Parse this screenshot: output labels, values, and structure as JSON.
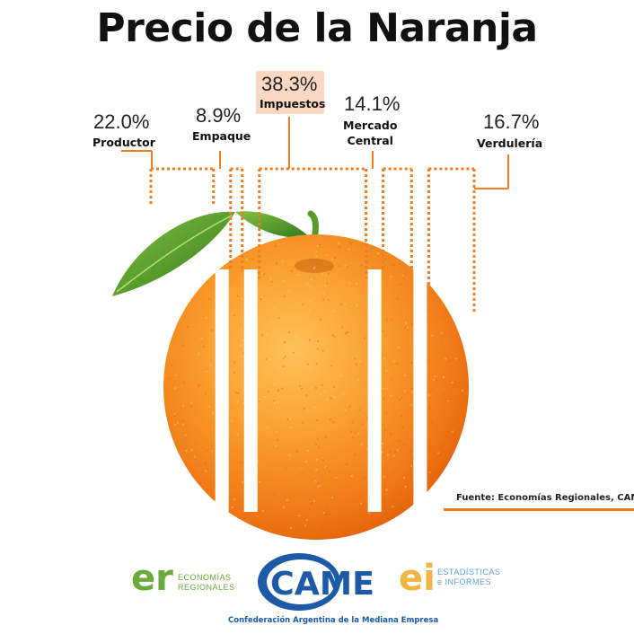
{
  "title": "Precio de la Naranja",
  "chart_data": {
    "type": "bar",
    "title": "Precio de la Naranja",
    "categories": [
      "Productor",
      "Empaque",
      "Impuestos",
      "Mercado Central",
      "Verdulería"
    ],
    "values": [
      22.0,
      8.9,
      38.3,
      14.1,
      16.7
    ],
    "value_labels": [
      "22.0%",
      "8.9%",
      "38.3%",
      "14.1%",
      "16.7%"
    ],
    "unit": "%",
    "highlighted_category": "Impuestos",
    "grid": false,
    "legend": "none"
  },
  "labels": {
    "productor": "Productor",
    "empaque": "Empaque",
    "impuestos": "Impuestos",
    "mercado_line1": "Mercado",
    "mercado_line2": "Central",
    "verduleria": "Verdulería"
  },
  "source": "Fuente: Economías Regionales, CAME",
  "logos": {
    "er_mark": "er",
    "er_line1": "ECONOMÍAS",
    "er_line2": "REGIONALES",
    "came_mark": "CAME",
    "came_subtitle": "Confederación Argentina de la Mediana Empresa",
    "ei_mark": "ei",
    "ei_line1": "ESTADÍSTICAS",
    "ei_line2": "e INFORMES"
  },
  "colors": {
    "accent": "#f07a1e",
    "dots": "#ef7d22",
    "highlight": "#fbd8c3",
    "orange_fruit": "#f58a1f",
    "leaf": "#4f9a2c",
    "came_blue": "#1c5aa8",
    "er_green": "#6aaa3a",
    "er_orange": "#f29a2e",
    "ei_yellow": "#f2b544",
    "ei_blue": "#5aa2d8"
  }
}
